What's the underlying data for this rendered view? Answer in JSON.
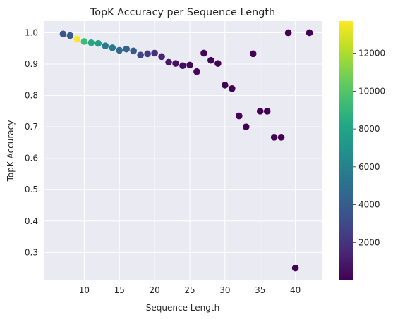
{
  "chart_data": {
    "type": "scatter",
    "title": "TopK Accuracy per Sequence Length",
    "xlabel": "Sequence Length",
    "ylabel": "TopK Accuracy",
    "xlim": [
      4.25,
      43.75
    ],
    "ylim": [
      0.211,
      1.037
    ],
    "xticks": [
      10,
      15,
      20,
      25,
      30,
      35,
      40
    ],
    "yticks": [
      0.3,
      0.4,
      0.5,
      0.6,
      0.7,
      0.8,
      0.9,
      1.0
    ],
    "grid": true,
    "colormap": "viridis",
    "colorbar": {
      "range": [
        0,
        13700
      ],
      "ticks": [
        2000,
        4000,
        6000,
        8000,
        10000,
        12000
      ]
    },
    "points": [
      {
        "x": 7,
        "y": 0.996,
        "c": 3500
      },
      {
        "x": 8,
        "y": 0.991,
        "c": 3900
      },
      {
        "x": 9,
        "y": 0.98,
        "c": 13700
      },
      {
        "x": 10,
        "y": 0.972,
        "c": 9400
      },
      {
        "x": 11,
        "y": 0.968,
        "c": 8200
      },
      {
        "x": 12,
        "y": 0.966,
        "c": 7700
      },
      {
        "x": 13,
        "y": 0.958,
        "c": 5700
      },
      {
        "x": 14,
        "y": 0.952,
        "c": 5500
      },
      {
        "x": 15,
        "y": 0.944,
        "c": 4900
      },
      {
        "x": 16,
        "y": 0.948,
        "c": 4300
      },
      {
        "x": 17,
        "y": 0.942,
        "c": 3800
      },
      {
        "x": 18,
        "y": 0.929,
        "c": 2900
      },
      {
        "x": 19,
        "y": 0.933,
        "c": 2300
      },
      {
        "x": 20,
        "y": 0.935,
        "c": 1900
      },
      {
        "x": 21,
        "y": 0.924,
        "c": 1400
      },
      {
        "x": 22,
        "y": 0.906,
        "c": 900
      },
      {
        "x": 23,
        "y": 0.902,
        "c": 600
      },
      {
        "x": 24,
        "y": 0.895,
        "c": 400
      },
      {
        "x": 25,
        "y": 0.897,
        "c": 300
      },
      {
        "x": 26,
        "y": 0.876,
        "c": 200
      },
      {
        "x": 27,
        "y": 0.935,
        "c": 150
      },
      {
        "x": 28,
        "y": 0.912,
        "c": 100
      },
      {
        "x": 29,
        "y": 0.902,
        "c": 80
      },
      {
        "x": 30,
        "y": 0.833,
        "c": 60
      },
      {
        "x": 31,
        "y": 0.822,
        "c": 50
      },
      {
        "x": 32,
        "y": 0.735,
        "c": 30
      },
      {
        "x": 33,
        "y": 0.7,
        "c": 20
      },
      {
        "x": 34,
        "y": 0.933,
        "c": 15
      },
      {
        "x": 35,
        "y": 0.75,
        "c": 8
      },
      {
        "x": 36,
        "y": 0.75,
        "c": 8
      },
      {
        "x": 37,
        "y": 0.667,
        "c": 3
      },
      {
        "x": 38,
        "y": 0.667,
        "c": 3
      },
      {
        "x": 39,
        "y": 1.0,
        "c": 2
      },
      {
        "x": 40,
        "y": 0.25,
        "c": 4
      },
      {
        "x": 42,
        "y": 1.0,
        "c": 1
      }
    ]
  },
  "colors": {
    "plot_background": "#eaeaf2",
    "grid": "#ffffff",
    "text": "#262626"
  }
}
